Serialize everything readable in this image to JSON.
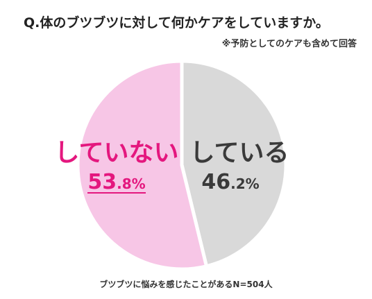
{
  "question": "Q.体のブツブツに対して何かケアをしていますか。",
  "note": "※予防としてのケアも含めて回答",
  "footnote": "ブツブツに悩みを感じたことがあるN=504人",
  "colors": {
    "yes": "#d9d9d9",
    "no": "#f7c6e6",
    "yes_text": "#3a3a3a",
    "no_text": "#e4177e"
  },
  "chart_data": {
    "type": "pie",
    "title": "Q.体のブツブツに対して何かケアをしていますか。",
    "start": "12 o'clock, clockwise",
    "slices": [
      {
        "label": "している",
        "value": 46.2,
        "display_number": "46.2",
        "unit": "%",
        "color": "#d9d9d9",
        "text_color": "#3a3a3a"
      },
      {
        "label": "していない",
        "value": 53.8,
        "display_number": "53.8",
        "unit": "%",
        "color": "#f7c6e6",
        "text_color": "#e4177e",
        "underline": true
      }
    ]
  }
}
